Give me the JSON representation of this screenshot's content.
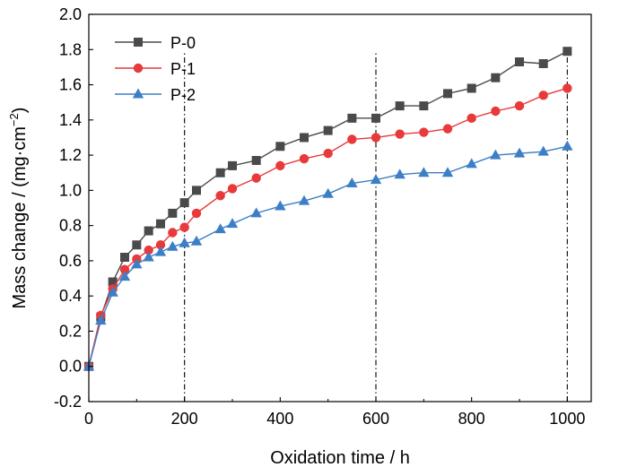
{
  "chart_data": {
    "type": "line",
    "xlabel": "Oxidation time / h",
    "ylabel": "Mass change / (mg·cm",
    "ylabel_sup": "−2",
    "ylabel_close": ")",
    "xlim": [
      0,
      1050
    ],
    "ylim": [
      -0.2,
      2.0
    ],
    "xticks": [
      0,
      200,
      400,
      600,
      800,
      1000
    ],
    "xtick_labels": [
      "0",
      "200",
      "400",
      "600",
      "800",
      "1000"
    ],
    "yticks": [
      -0.2,
      0.0,
      0.2,
      0.4,
      0.6,
      0.8,
      1.0,
      1.2,
      1.4,
      1.6,
      1.8,
      2.0
    ],
    "ytick_labels": [
      "-0.2",
      "0.0",
      "0.2",
      "0.4",
      "0.6",
      "0.8",
      "1.0",
      "1.2",
      "1.4",
      "1.6",
      "1.8",
      "2.0"
    ],
    "grid": false,
    "legend_position": "top-left",
    "reference_lines_x": [
      200,
      600,
      1000
    ],
    "x": [
      0,
      25,
      50,
      75,
      100,
      125,
      150,
      175,
      200,
      225,
      275,
      300,
      350,
      400,
      450,
      500,
      550,
      600,
      650,
      700,
      750,
      800,
      850,
      900,
      950,
      1000
    ],
    "series": [
      {
        "name": "P-0",
        "color": "#4a4a4a",
        "marker": "square",
        "values": [
          0.0,
          0.28,
          0.48,
          0.62,
          0.69,
          0.77,
          0.81,
          0.87,
          0.93,
          1.0,
          1.1,
          1.14,
          1.17,
          1.25,
          1.3,
          1.34,
          1.41,
          1.41,
          1.48,
          1.48,
          1.55,
          1.58,
          1.64,
          1.73,
          1.72,
          1.79
        ]
      },
      {
        "name": "P-1",
        "color": "#e8393b",
        "marker": "circle",
        "values": [
          0.0,
          0.29,
          0.44,
          0.55,
          0.61,
          0.66,
          0.69,
          0.76,
          0.79,
          0.87,
          0.97,
          1.01,
          1.07,
          1.14,
          1.18,
          1.21,
          1.29,
          1.3,
          1.32,
          1.33,
          1.35,
          1.41,
          1.45,
          1.48,
          1.54,
          1.58
        ]
      },
      {
        "name": "P-2",
        "color": "#3d7fc6",
        "marker": "triangle",
        "values": [
          0.0,
          0.26,
          0.42,
          0.51,
          0.58,
          0.62,
          0.65,
          0.68,
          0.7,
          0.71,
          0.78,
          0.81,
          0.87,
          0.91,
          0.94,
          0.98,
          1.04,
          1.06,
          1.09,
          1.1,
          1.1,
          1.15,
          1.2,
          1.21,
          1.22,
          1.25
        ]
      }
    ]
  }
}
